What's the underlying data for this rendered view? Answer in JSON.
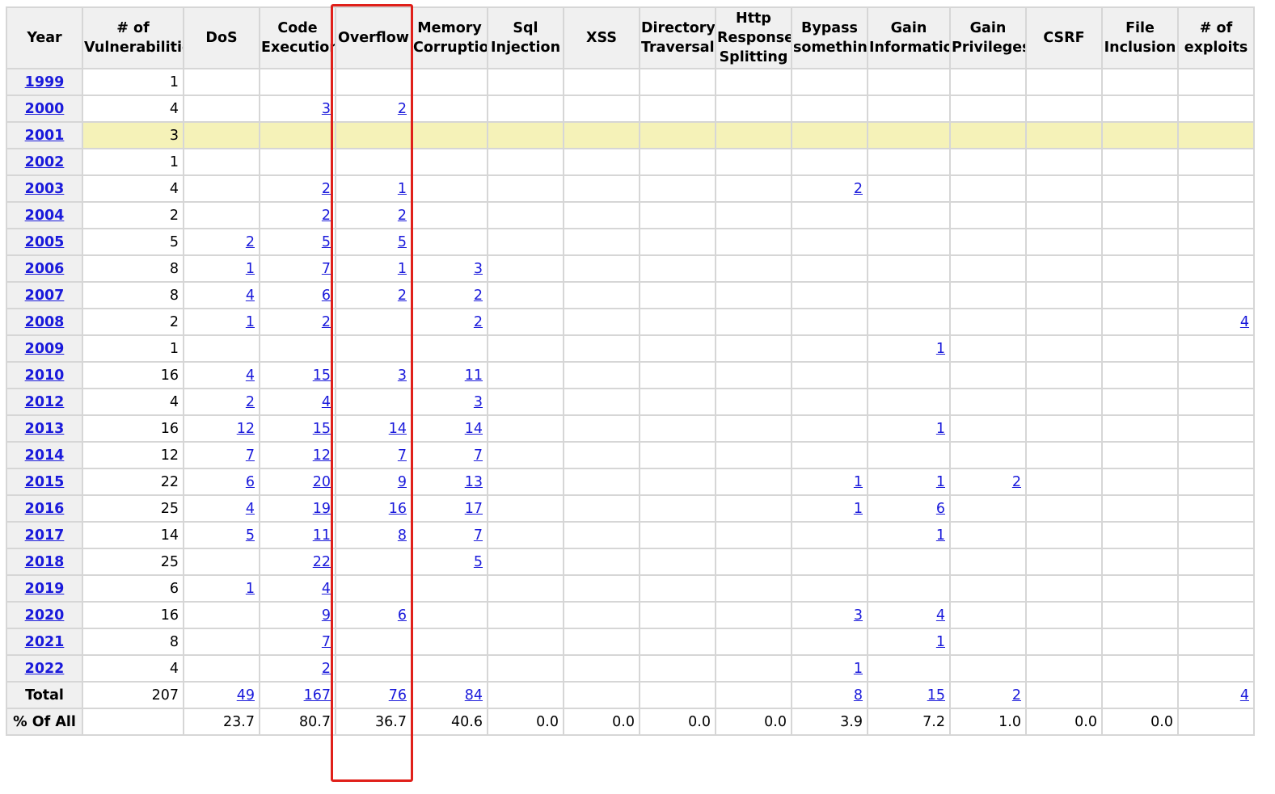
{
  "table": {
    "headers": [
      "Year",
      "# of Vulnerabilities",
      "DoS",
      "Code Execution",
      "Overflow",
      "Memory Corruption",
      "Sql Injection",
      "XSS",
      "Directory Traversal",
      "Http Response Splitting",
      "Bypass something",
      "Gain Information",
      "Gain Privileges",
      "CSRF",
      "File Inclusion",
      "# of exploits"
    ],
    "highlighted_column": "Overflow",
    "highlighted_row": "2001",
    "rows": [
      [
        "1999",
        "1",
        "",
        "",
        "",
        "",
        "",
        "",
        "",
        "",
        "",
        "",
        "",
        "",
        "",
        ""
      ],
      [
        "2000",
        "4",
        "",
        "3",
        "2",
        "",
        "",
        "",
        "",
        "",
        "",
        "",
        "",
        "",
        "",
        ""
      ],
      [
        "2001",
        "3",
        "",
        "",
        "",
        "",
        "",
        "",
        "",
        "",
        "",
        "",
        "",
        "",
        "",
        ""
      ],
      [
        "2002",
        "1",
        "",
        "",
        "",
        "",
        "",
        "",
        "",
        "",
        "",
        "",
        "",
        "",
        "",
        ""
      ],
      [
        "2003",
        "4",
        "",
        "2",
        "1",
        "",
        "",
        "",
        "",
        "",
        "2",
        "",
        "",
        "",
        "",
        ""
      ],
      [
        "2004",
        "2",
        "",
        "2",
        "2",
        "",
        "",
        "",
        "",
        "",
        "",
        "",
        "",
        "",
        "",
        ""
      ],
      [
        "2005",
        "5",
        "2",
        "5",
        "5",
        "",
        "",
        "",
        "",
        "",
        "",
        "",
        "",
        "",
        "",
        ""
      ],
      [
        "2006",
        "8",
        "1",
        "7",
        "1",
        "3",
        "",
        "",
        "",
        "",
        "",
        "",
        "",
        "",
        "",
        ""
      ],
      [
        "2007",
        "8",
        "4",
        "6",
        "2",
        "2",
        "",
        "",
        "",
        "",
        "",
        "",
        "",
        "",
        "",
        ""
      ],
      [
        "2008",
        "2",
        "1",
        "2",
        "",
        "2",
        "",
        "",
        "",
        "",
        "",
        "",
        "",
        "",
        "",
        "4"
      ],
      [
        "2009",
        "1",
        "",
        "",
        "",
        "",
        "",
        "",
        "",
        "",
        "",
        "1",
        "",
        "",
        "",
        ""
      ],
      [
        "2010",
        "16",
        "4",
        "15",
        "3",
        "11",
        "",
        "",
        "",
        "",
        "",
        "",
        "",
        "",
        "",
        ""
      ],
      [
        "2012",
        "4",
        "2",
        "4",
        "",
        "3",
        "",
        "",
        "",
        "",
        "",
        "",
        "",
        "",
        "",
        ""
      ],
      [
        "2013",
        "16",
        "12",
        "15",
        "14",
        "14",
        "",
        "",
        "",
        "",
        "",
        "1",
        "",
        "",
        "",
        ""
      ],
      [
        "2014",
        "12",
        "7",
        "12",
        "7",
        "7",
        "",
        "",
        "",
        "",
        "",
        "",
        "",
        "",
        "",
        ""
      ],
      [
        "2015",
        "22",
        "6",
        "20",
        "9",
        "13",
        "",
        "",
        "",
        "",
        "1",
        "1",
        "2",
        "",
        "",
        ""
      ],
      [
        "2016",
        "25",
        "4",
        "19",
        "16",
        "17",
        "",
        "",
        "",
        "",
        "1",
        "6",
        "",
        "",
        "",
        ""
      ],
      [
        "2017",
        "14",
        "5",
        "11",
        "8",
        "7",
        "",
        "",
        "",
        "",
        "",
        "1",
        "",
        "",
        "",
        ""
      ],
      [
        "2018",
        "25",
        "",
        "22",
        "",
        "5",
        "",
        "",
        "",
        "",
        "",
        "",
        "",
        "",
        "",
        ""
      ],
      [
        "2019",
        "6",
        "1",
        "4",
        "",
        "",
        "",
        "",
        "",
        "",
        "",
        "",
        "",
        "",
        "",
        ""
      ],
      [
        "2020",
        "16",
        "",
        "9",
        "6",
        "",
        "",
        "",
        "",
        "",
        "3",
        "4",
        "",
        "",
        "",
        ""
      ],
      [
        "2021",
        "8",
        "",
        "7",
        "",
        "",
        "",
        "",
        "",
        "",
        "",
        "1",
        "",
        "",
        "",
        ""
      ],
      [
        "2022",
        "4",
        "",
        "2",
        "",
        "",
        "",
        "",
        "",
        "",
        "1",
        "",
        "",
        "",
        "",
        ""
      ]
    ],
    "total_row": [
      "Total",
      "207",
      "49",
      "167",
      "76",
      "84",
      "",
      "",
      "",
      "",
      "8",
      "15",
      "2",
      "",
      "",
      "4"
    ],
    "percent_row": [
      "% Of All",
      "",
      "23.7",
      "80.7",
      "36.7",
      "40.6",
      "0.0",
      "0.0",
      "0.0",
      "0.0",
      "3.9",
      "7.2",
      "1.0",
      "0.0",
      "0.0",
      ""
    ]
  },
  "colors": {
    "link": "#1a1adb",
    "header_bg": "#f0f0f0",
    "row_highlight": "#f5f2b8",
    "column_outline": "#e0201a",
    "grid": "#d6d6d6"
  }
}
